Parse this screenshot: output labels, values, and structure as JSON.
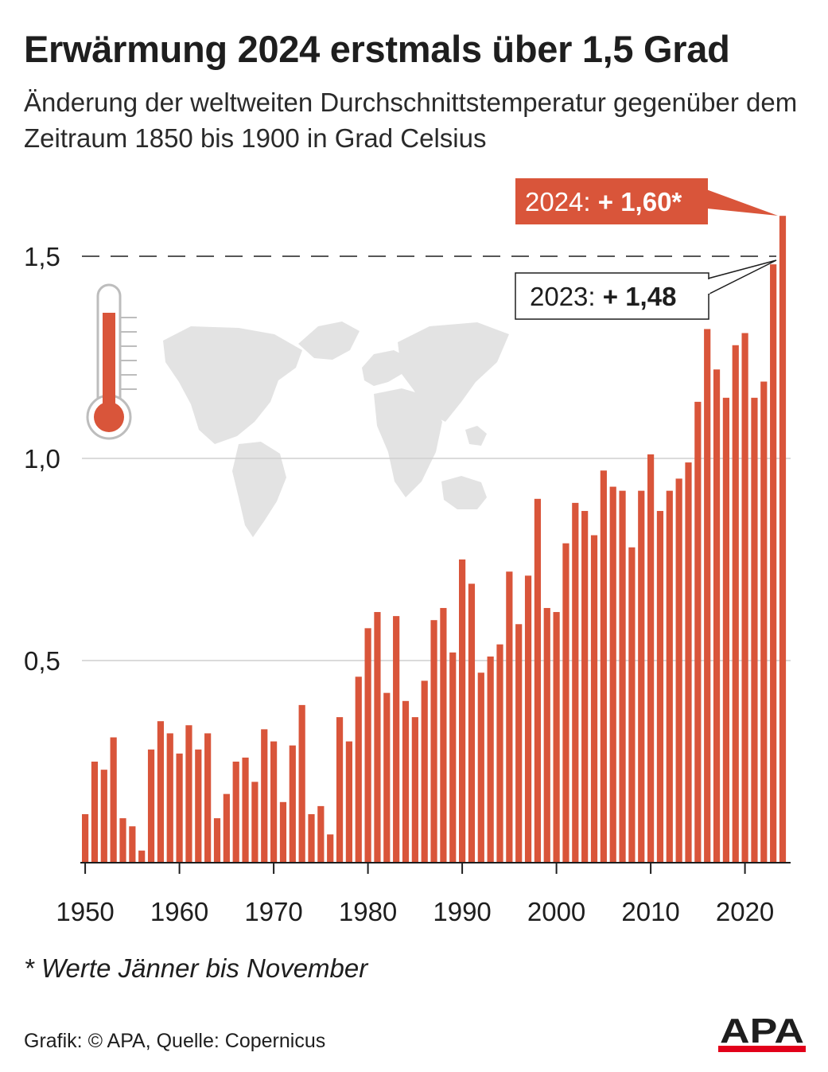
{
  "header": {
    "title": "Erwärmung 2024 erstmals über 1,5 Grad",
    "subtitle": "Änderung der weltweiten Durchschnittstemperatur gegenüber dem Zeitraum 1850 bis 1900 in Grad Celsius"
  },
  "callouts": {
    "y2024": {
      "prefix": "2024: ",
      "value": "+ 1,60*"
    },
    "y2023": {
      "prefix": "2023: ",
      "value": "+ 1,48"
    }
  },
  "footer": {
    "footnote": "* Werte Jänner bis November",
    "source": "Grafik: © APA, Quelle: Copernicus",
    "logo_text": "APA"
  },
  "colors": {
    "bar": "#d9553a",
    "callout_2024_fill": "#d9553a",
    "axis": "#1e1e1e",
    "grid": "#cfcfcf",
    "map": "#e3e3e3",
    "thermometer": "#d9553a"
  },
  "icons": [
    "thermometer-icon",
    "world-map-icon"
  ],
  "chart_data": {
    "type": "bar",
    "title": "Erwärmung 2024 erstmals über 1,5 Grad",
    "subtitle": "Änderung der weltweiten Durchschnittstemperatur gegenüber dem Zeitraum 1850 bis 1900 in Grad Celsius",
    "ylim": [
      0,
      1.6
    ],
    "y_ticks": [
      0.5,
      1.0,
      1.5
    ],
    "y_tick_labels": [
      "0,5",
      "1,0",
      "1,5"
    ],
    "x_ticks": [
      1950,
      1960,
      1970,
      1980,
      1990,
      2000,
      2010,
      2020
    ],
    "x_tick_labels": [
      "1950",
      "1960",
      "1970",
      "1980",
      "1990",
      "2000",
      "2010",
      "2020"
    ],
    "reference_line": 1.5,
    "grid": true,
    "legend": "none",
    "categories": [
      1950,
      1951,
      1952,
      1953,
      1954,
      1955,
      1956,
      1957,
      1958,
      1959,
      1960,
      1961,
      1962,
      1963,
      1964,
      1965,
      1966,
      1967,
      1968,
      1969,
      1970,
      1971,
      1972,
      1973,
      1974,
      1975,
      1976,
      1977,
      1978,
      1979,
      1980,
      1981,
      1982,
      1983,
      1984,
      1985,
      1986,
      1987,
      1988,
      1989,
      1990,
      1991,
      1992,
      1993,
      1994,
      1995,
      1996,
      1997,
      1998,
      1999,
      2000,
      2001,
      2002,
      2003,
      2004,
      2005,
      2006,
      2007,
      2008,
      2009,
      2010,
      2011,
      2012,
      2013,
      2014,
      2015,
      2016,
      2017,
      2018,
      2019,
      2020,
      2021,
      2022,
      2023,
      2024
    ],
    "values": [
      0.12,
      0.25,
      0.23,
      0.31,
      0.11,
      0.09,
      0.03,
      0.28,
      0.35,
      0.32,
      0.27,
      0.34,
      0.28,
      0.32,
      0.11,
      0.17,
      0.25,
      0.26,
      0.2,
      0.33,
      0.3,
      0.15,
      0.29,
      0.39,
      0.12,
      0.14,
      0.07,
      0.36,
      0.3,
      0.46,
      0.58,
      0.62,
      0.42,
      0.61,
      0.4,
      0.36,
      0.45,
      0.6,
      0.63,
      0.52,
      0.75,
      0.69,
      0.47,
      0.51,
      0.54,
      0.72,
      0.59,
      0.71,
      0.9,
      0.63,
      0.62,
      0.79,
      0.89,
      0.87,
      0.81,
      0.97,
      0.93,
      0.92,
      0.78,
      0.92,
      1.01,
      0.87,
      0.92,
      0.95,
      0.99,
      1.14,
      1.32,
      1.22,
      1.15,
      1.28,
      1.31,
      1.15,
      1.19,
      1.48,
      1.6
    ]
  }
}
